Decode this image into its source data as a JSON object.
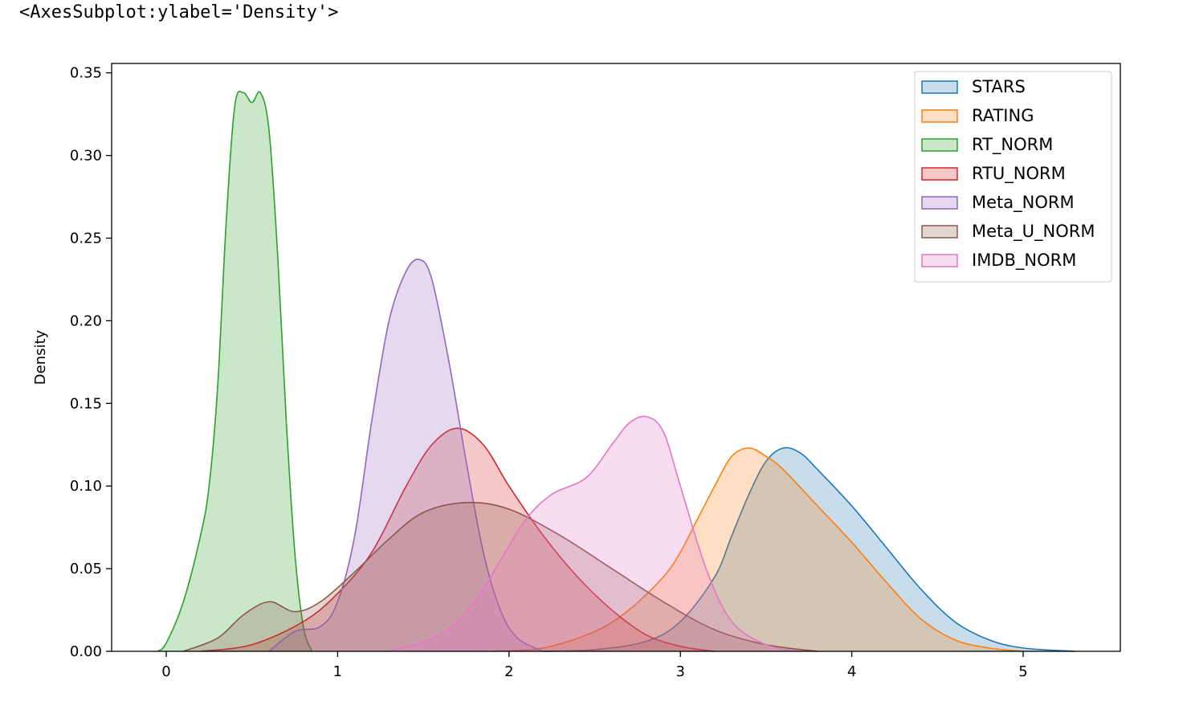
{
  "output_repr": "<AxesSubplot:ylabel='Density'>",
  "chart_data": {
    "type": "area",
    "title": "",
    "xlabel": "",
    "ylabel": "Density",
    "xlim": [
      -0.3,
      5.6
    ],
    "ylim": [
      0,
      0.36
    ],
    "x_ticks": [
      "0",
      "1",
      "2",
      "3",
      "4",
      "5"
    ],
    "y_ticks": [
      "0.00",
      "0.05",
      "0.10",
      "0.15",
      "0.20",
      "0.25",
      "0.30",
      "0.35"
    ],
    "grid": false,
    "legend_position": "top-right",
    "series": [
      {
        "name": "STARS",
        "color": "#1f77b4",
        "x": [
          2.2,
          2.5,
          2.8,
          3.0,
          3.2,
          3.3,
          3.4,
          3.5,
          3.6,
          3.7,
          3.8,
          4.0,
          4.2,
          4.4,
          4.6,
          4.8,
          5.0,
          5.3
        ],
        "y": [
          0.0,
          0.001,
          0.006,
          0.018,
          0.045,
          0.07,
          0.095,
          0.115,
          0.123,
          0.12,
          0.11,
          0.088,
          0.063,
          0.038,
          0.018,
          0.007,
          0.002,
          0.0
        ]
      },
      {
        "name": "RATING",
        "color": "#ff7f0e",
        "x": [
          1.9,
          2.2,
          2.5,
          2.7,
          2.9,
          3.0,
          3.1,
          3.2,
          3.3,
          3.4,
          3.5,
          3.6,
          3.8,
          4.0,
          4.2,
          4.4,
          4.6,
          4.8,
          5.0
        ],
        "y": [
          0.0,
          0.002,
          0.012,
          0.025,
          0.045,
          0.06,
          0.08,
          0.1,
          0.118,
          0.123,
          0.118,
          0.11,
          0.088,
          0.066,
          0.042,
          0.02,
          0.007,
          0.002,
          0.0
        ]
      },
      {
        "name": "RT_NORM",
        "color": "#2ca02c",
        "x": [
          -0.05,
          0.0,
          0.1,
          0.2,
          0.25,
          0.3,
          0.35,
          0.4,
          0.45,
          0.5,
          0.55,
          0.6,
          0.65,
          0.7,
          0.75,
          0.8,
          0.85
        ],
        "y": [
          0.0,
          0.005,
          0.03,
          0.07,
          0.1,
          0.16,
          0.26,
          0.33,
          0.338,
          0.332,
          0.338,
          0.315,
          0.24,
          0.14,
          0.06,
          0.015,
          0.0
        ]
      },
      {
        "name": "RTU_NORM",
        "color": "#d62728",
        "x": [
          0.2,
          0.5,
          0.8,
          1.0,
          1.2,
          1.4,
          1.55,
          1.7,
          1.85,
          2.0,
          2.2,
          2.4,
          2.6,
          2.8,
          3.0,
          3.2
        ],
        "y": [
          0.0,
          0.004,
          0.018,
          0.035,
          0.06,
          0.1,
          0.125,
          0.135,
          0.125,
          0.1,
          0.07,
          0.045,
          0.025,
          0.01,
          0.003,
          0.0
        ]
      },
      {
        "name": "Meta_NORM",
        "color": "#9467bd",
        "x": [
          0.6,
          0.75,
          0.9,
          1.0,
          1.1,
          1.2,
          1.3,
          1.4,
          1.48,
          1.55,
          1.65,
          1.75,
          1.85,
          1.95,
          2.05,
          2.2
        ],
        "y": [
          0.0,
          0.012,
          0.015,
          0.03,
          0.07,
          0.14,
          0.2,
          0.23,
          0.237,
          0.225,
          0.175,
          0.115,
          0.06,
          0.025,
          0.008,
          0.0
        ]
      },
      {
        "name": "Meta_U_NORM",
        "color": "#8c564b",
        "x": [
          0.1,
          0.3,
          0.45,
          0.6,
          0.75,
          0.9,
          1.1,
          1.3,
          1.5,
          1.75,
          2.0,
          2.3,
          2.6,
          2.9,
          3.2,
          3.5,
          3.8
        ],
        "y": [
          0.0,
          0.008,
          0.022,
          0.03,
          0.024,
          0.03,
          0.048,
          0.068,
          0.084,
          0.09,
          0.086,
          0.07,
          0.05,
          0.03,
          0.013,
          0.004,
          0.0
        ]
      },
      {
        "name": "IMDB_NORM",
        "color": "#e377c2",
        "x": [
          1.3,
          1.6,
          1.8,
          1.95,
          2.1,
          2.25,
          2.45,
          2.6,
          2.7,
          2.8,
          2.9,
          3.0,
          3.15,
          3.3,
          3.5,
          3.7
        ],
        "y": [
          0.0,
          0.01,
          0.03,
          0.055,
          0.08,
          0.095,
          0.105,
          0.125,
          0.138,
          0.142,
          0.133,
          0.1,
          0.05,
          0.018,
          0.004,
          0.0
        ]
      }
    ]
  }
}
